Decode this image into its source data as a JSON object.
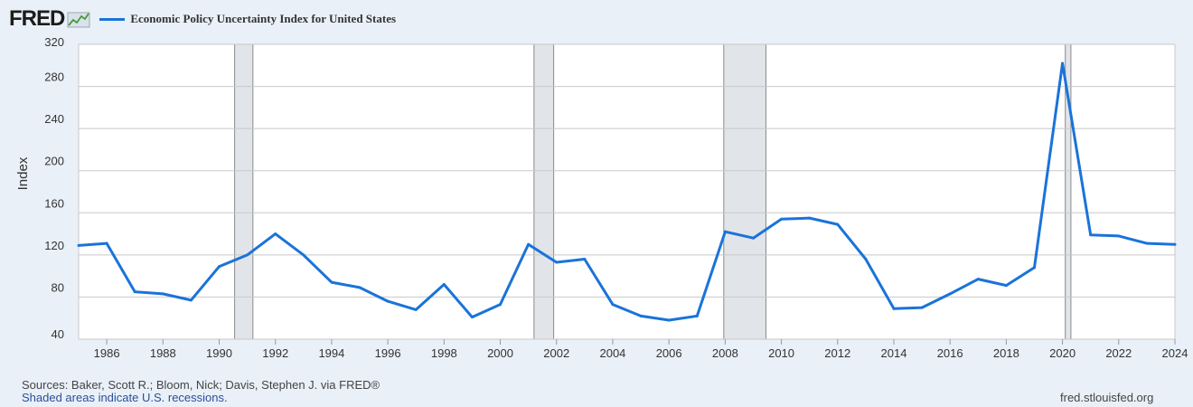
{
  "header": {
    "logo_text": "FRED",
    "logo_icon": "line-graph-icon"
  },
  "colors": {
    "series": "#1a73d9",
    "recession": "#e1e5ea",
    "grid": "#c8c8c8",
    "background": "#e9f0f8",
    "plot": "#ffffff"
  },
  "chart_data": {
    "type": "line",
    "title": "",
    "xlabel": "",
    "ylabel": "Index",
    "xlim": [
      1985,
      2024
    ],
    "ylim": [
      40,
      320
    ],
    "y_ticks": [
      40,
      80,
      120,
      160,
      200,
      240,
      280,
      320
    ],
    "x_ticks": [
      1986,
      1988,
      1990,
      1992,
      1994,
      1996,
      1998,
      2000,
      2002,
      2004,
      2006,
      2008,
      2010,
      2012,
      2014,
      2016,
      2018,
      2020,
      2022,
      2024
    ],
    "grid": true,
    "legend_position": "top-left",
    "recessions": [
      [
        1990.55,
        1991.2
      ],
      [
        2001.2,
        2001.9
      ],
      [
        2007.95,
        2009.45
      ],
      [
        2020.1,
        2020.3
      ]
    ],
    "series": [
      {
        "name": "Economic Policy Uncertainty Index for United States",
        "x": [
          1985,
          1986,
          1987,
          1988,
          1989,
          1990,
          1991,
          1992,
          1993,
          1994,
          1995,
          1996,
          1997,
          1998,
          1999,
          2000,
          2001,
          2002,
          2003,
          2004,
          2005,
          2006,
          2007,
          2008,
          2009,
          2010,
          2011,
          2012,
          2013,
          2014,
          2015,
          2016,
          2017,
          2018,
          2019,
          2020,
          2021,
          2022,
          2023,
          2024
        ],
        "y": [
          129,
          131,
          85,
          83,
          77,
          109,
          120,
          140,
          120,
          94,
          89,
          76,
          68,
          92,
          61,
          73,
          130,
          113,
          116,
          73,
          62,
          58,
          62,
          142,
          136,
          154,
          155,
          149,
          116,
          69,
          70,
          83,
          97,
          91,
          108,
          302,
          139,
          138,
          131,
          130
        ]
      }
    ]
  },
  "footer": {
    "sources": "Sources: Baker, Scott R.; Bloom, Nick; Davis, Stephen J. via FRED®",
    "shaded_note": "Shaded areas indicate U.S. recessions.",
    "site": "fred.stlouisfed.org"
  }
}
